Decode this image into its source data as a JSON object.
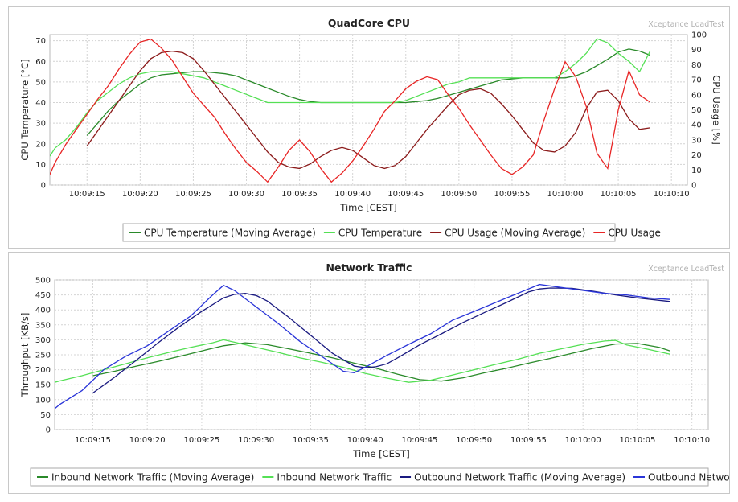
{
  "chart_data": [
    {
      "type": "line",
      "title": "QuadCore CPU",
      "watermark": "Xceptance LoadTest",
      "xlabel": "Time [CEST]",
      "ylabel": "CPU Temperature [°C]",
      "y2label": "CPU Usage [%]",
      "xlim": [
        11.5,
        71.5
      ],
      "ylim": [
        0,
        73
      ],
      "y2lim": [
        0,
        100
      ],
      "x_ticks": [
        15,
        20,
        25,
        30,
        35,
        40,
        45,
        50,
        55,
        60,
        65,
        70
      ],
      "x_tick_labels": [
        "10:09:15",
        "10:09:20",
        "10:09:25",
        "10:09:30",
        "10:09:35",
        "10:09:40",
        "10:09:45",
        "10:09:50",
        "10:09:55",
        "10:10:00",
        "10:10:05",
        "10:10:10"
      ],
      "y_ticks": [
        0,
        10,
        20,
        30,
        40,
        50,
        60,
        70
      ],
      "y2_ticks": [
        0,
        10,
        20,
        30,
        40,
        50,
        60,
        70,
        80,
        90,
        100
      ],
      "grid": true,
      "legend_position": "bottom",
      "series": [
        {
          "name": "CPU Temperature (Moving Average)",
          "axis": "left",
          "color": "#2a8a2a",
          "x": [
            15,
            16,
            17,
            18,
            19,
            20,
            21,
            22,
            23,
            24,
            25,
            26,
            27,
            28,
            29,
            30,
            31,
            32,
            33,
            34,
            35,
            36,
            37,
            38,
            39,
            40,
            41,
            42,
            43,
            44,
            45,
            46,
            47,
            48,
            49,
            50,
            51,
            52,
            53,
            54,
            55,
            56,
            57,
            58,
            59,
            60,
            61,
            62,
            63,
            64,
            65,
            66,
            67,
            68
          ],
          "y": [
            24,
            30,
            36,
            41,
            45,
            49,
            52,
            53.5,
            54,
            54.5,
            55,
            55,
            54.5,
            54,
            53,
            51,
            49,
            47,
            45,
            43,
            41.5,
            40.5,
            40,
            40,
            40,
            40,
            40,
            40,
            40,
            40,
            40,
            40.5,
            41,
            42,
            43.5,
            45,
            46.5,
            48,
            49.5,
            51,
            51.5,
            52,
            52,
            52,
            52,
            52,
            53,
            55,
            58,
            61,
            64.5,
            66,
            65,
            63
          ]
        },
        {
          "name": "CPU Temperature",
          "axis": "left",
          "color": "#55e055",
          "x": [
            11.5,
            12,
            13,
            14,
            15,
            16,
            17,
            18,
            19,
            20,
            21,
            22,
            23,
            24,
            25,
            26,
            27,
            28,
            29,
            30,
            31,
            32,
            33,
            34,
            35,
            36,
            37,
            38,
            39,
            40,
            41,
            42,
            43,
            44,
            45,
            46,
            47,
            48,
            49,
            50,
            51,
            52,
            53,
            54,
            55,
            56,
            57,
            58,
            59,
            60,
            61,
            62,
            63,
            64,
            65,
            66,
            67,
            68
          ],
          "y": [
            14,
            18,
            22,
            28,
            35,
            41,
            45,
            49,
            52,
            54,
            55,
            55,
            55,
            54,
            53,
            52,
            50,
            48,
            46,
            44,
            42,
            40,
            40,
            40,
            40,
            40,
            40,
            40,
            40,
            40,
            40,
            40,
            40,
            40,
            41,
            43,
            45,
            47,
            49,
            50,
            52,
            52,
            52,
            52,
            52,
            52,
            52,
            52,
            52,
            55,
            59,
            64,
            71,
            69,
            64,
            60,
            55,
            65
          ]
        },
        {
          "name": "CPU Usage (Moving Average)",
          "axis": "right",
          "color": "#8b1a1a",
          "x": [
            15,
            16,
            17,
            18,
            19,
            20,
            21,
            22,
            23,
            24,
            25,
            26,
            27,
            28,
            29,
            30,
            31,
            32,
            33,
            34,
            35,
            36,
            37,
            38,
            39,
            40,
            41,
            42,
            43,
            44,
            45,
            46,
            47,
            48,
            49,
            50,
            51,
            52,
            53,
            54,
            55,
            56,
            57,
            58,
            59,
            60,
            61,
            62,
            63,
            64,
            65,
            66,
            67,
            68
          ],
          "y": [
            26,
            36,
            46,
            56,
            66,
            76,
            84,
            88,
            89,
            88,
            84,
            76,
            67,
            58,
            49,
            40,
            31,
            22,
            15,
            12,
            11,
            14,
            19,
            23,
            25,
            23,
            18,
            13,
            11,
            13,
            19,
            28,
            37,
            45,
            53,
            60,
            63,
            64,
            61,
            54,
            46,
            37,
            28,
            23,
            22,
            26,
            35,
            51,
            62,
            63,
            56,
            44,
            37,
            38
          ]
        },
        {
          "name": "CPU Usage",
          "axis": "right",
          "color": "#e82525",
          "x": [
            11.5,
            12,
            13,
            14,
            15,
            16,
            17,
            18,
            19,
            20,
            21,
            22,
            23,
            24,
            25,
            26,
            27,
            28,
            29,
            30,
            31,
            32,
            33,
            34,
            35,
            36,
            37,
            38,
            39,
            40,
            41,
            42,
            43,
            44,
            45,
            46,
            47,
            48,
            49,
            50,
            51,
            52,
            53,
            54,
            55,
            56,
            57,
            58,
            59,
            60,
            61,
            62,
            63,
            64,
            65,
            66,
            67,
            68
          ],
          "y": [
            7,
            15,
            27,
            37,
            47,
            57,
            66,
            77,
            87,
            95,
            97,
            91,
            83,
            72,
            61,
            53,
            45,
            34,
            24,
            15,
            9,
            2,
            12,
            23,
            30,
            22,
            11,
            2,
            8,
            16,
            26,
            37,
            49,
            56,
            64,
            69,
            72,
            70,
            60,
            51,
            40,
            30,
            20,
            11,
            7,
            12,
            20,
            43,
            64,
            82,
            72,
            52,
            21,
            11,
            50,
            76,
            60,
            55
          ]
        }
      ]
    },
    {
      "type": "line",
      "title": "Network Traffic",
      "watermark": "Xceptance LoadTest",
      "xlabel": "Time [CEST]",
      "ylabel": "Throughput [KB/s]",
      "xlim": [
        11.5,
        71.5
      ],
      "ylim": [
        0,
        500
      ],
      "x_ticks": [
        15,
        20,
        25,
        30,
        35,
        40,
        45,
        50,
        55,
        60,
        65,
        70
      ],
      "x_tick_labels": [
        "10:09:15",
        "10:09:20",
        "10:09:25",
        "10:09:30",
        "10:09:35",
        "10:09:40",
        "10:09:45",
        "10:09:50",
        "10:09:55",
        "10:10:00",
        "10:10:05",
        "10:10:10"
      ],
      "y_ticks": [
        0,
        50,
        100,
        150,
        200,
        250,
        300,
        350,
        400,
        450,
        500
      ],
      "grid": true,
      "legend_position": "bottom",
      "series": [
        {
          "name": "Inbound Network Traffic (Moving Average)",
          "color": "#2a8a2a",
          "x": [
            15,
            17,
            19,
            21,
            23,
            25,
            27,
            29,
            31,
            33,
            35,
            37,
            39,
            41,
            43,
            45,
            47,
            49,
            51,
            53,
            55,
            57,
            59,
            61,
            63,
            65,
            67,
            68
          ],
          "y": [
            180,
            195,
            212,
            228,
            245,
            263,
            280,
            290,
            284,
            270,
            255,
            240,
            222,
            205,
            185,
            167,
            162,
            173,
            190,
            205,
            222,
            238,
            255,
            272,
            286,
            288,
            275,
            263
          ]
        },
        {
          "name": "Inbound Network Traffic",
          "color": "#55e055",
          "x": [
            11.5,
            12,
            14,
            16,
            18,
            20,
            22,
            24,
            26,
            27,
            28,
            30,
            32,
            34,
            36,
            38,
            40,
            42,
            44,
            46,
            48,
            50,
            52,
            54,
            56,
            58,
            60,
            62,
            63,
            64,
            66,
            68
          ],
          "y": [
            158,
            163,
            180,
            200,
            220,
            240,
            258,
            275,
            290,
            300,
            292,
            275,
            258,
            240,
            225,
            208,
            188,
            172,
            158,
            165,
            182,
            200,
            218,
            235,
            255,
            270,
            285,
            296,
            298,
            283,
            268,
            252
          ]
        },
        {
          "name": "Outbound Network Traffic (Moving Average)",
          "color": "#1a1a80",
          "x": [
            15,
            17,
            19,
            21,
            23,
            25,
            27,
            28,
            29,
            30,
            31,
            33,
            35,
            37,
            39,
            40,
            41,
            42,
            43,
            45,
            47,
            49,
            51,
            53,
            55,
            56,
            57,
            59,
            61,
            63,
            65,
            67,
            68
          ],
          "y": [
            122,
            175,
            232,
            290,
            345,
            395,
            440,
            452,
            455,
            448,
            430,
            375,
            315,
            255,
            212,
            207,
            210,
            220,
            240,
            283,
            320,
            358,
            392,
            425,
            460,
            470,
            473,
            472,
            462,
            450,
            440,
            432,
            428
          ]
        },
        {
          "name": "Outbound Network Traffic",
          "color": "#2a35d8",
          "x": [
            11.5,
            12,
            14,
            16,
            18,
            20,
            22,
            24,
            26,
            27,
            28,
            30,
            32,
            34,
            36,
            38,
            39,
            40,
            42,
            44,
            46,
            48,
            50,
            52,
            54,
            56,
            58,
            60,
            62,
            64,
            66,
            68
          ],
          "y": [
            70,
            85,
            130,
            200,
            245,
            280,
            330,
            380,
            450,
            482,
            465,
            410,
            355,
            295,
            245,
            195,
            190,
            208,
            248,
            285,
            320,
            365,
            395,
            425,
            455,
            485,
            475,
            465,
            455,
            450,
            440,
            435
          ]
        }
      ]
    }
  ]
}
